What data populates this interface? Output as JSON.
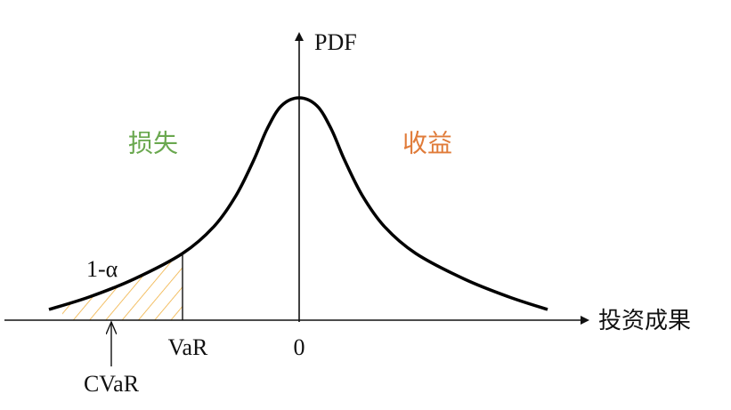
{
  "axes": {
    "y_label": "PDF",
    "x_label": "投资成果",
    "origin_label": "0"
  },
  "regions": {
    "loss": "损失",
    "gain": "收益"
  },
  "annotations": {
    "tail": "1-α",
    "var": "VaR",
    "cvar": "CVaR"
  }
}
